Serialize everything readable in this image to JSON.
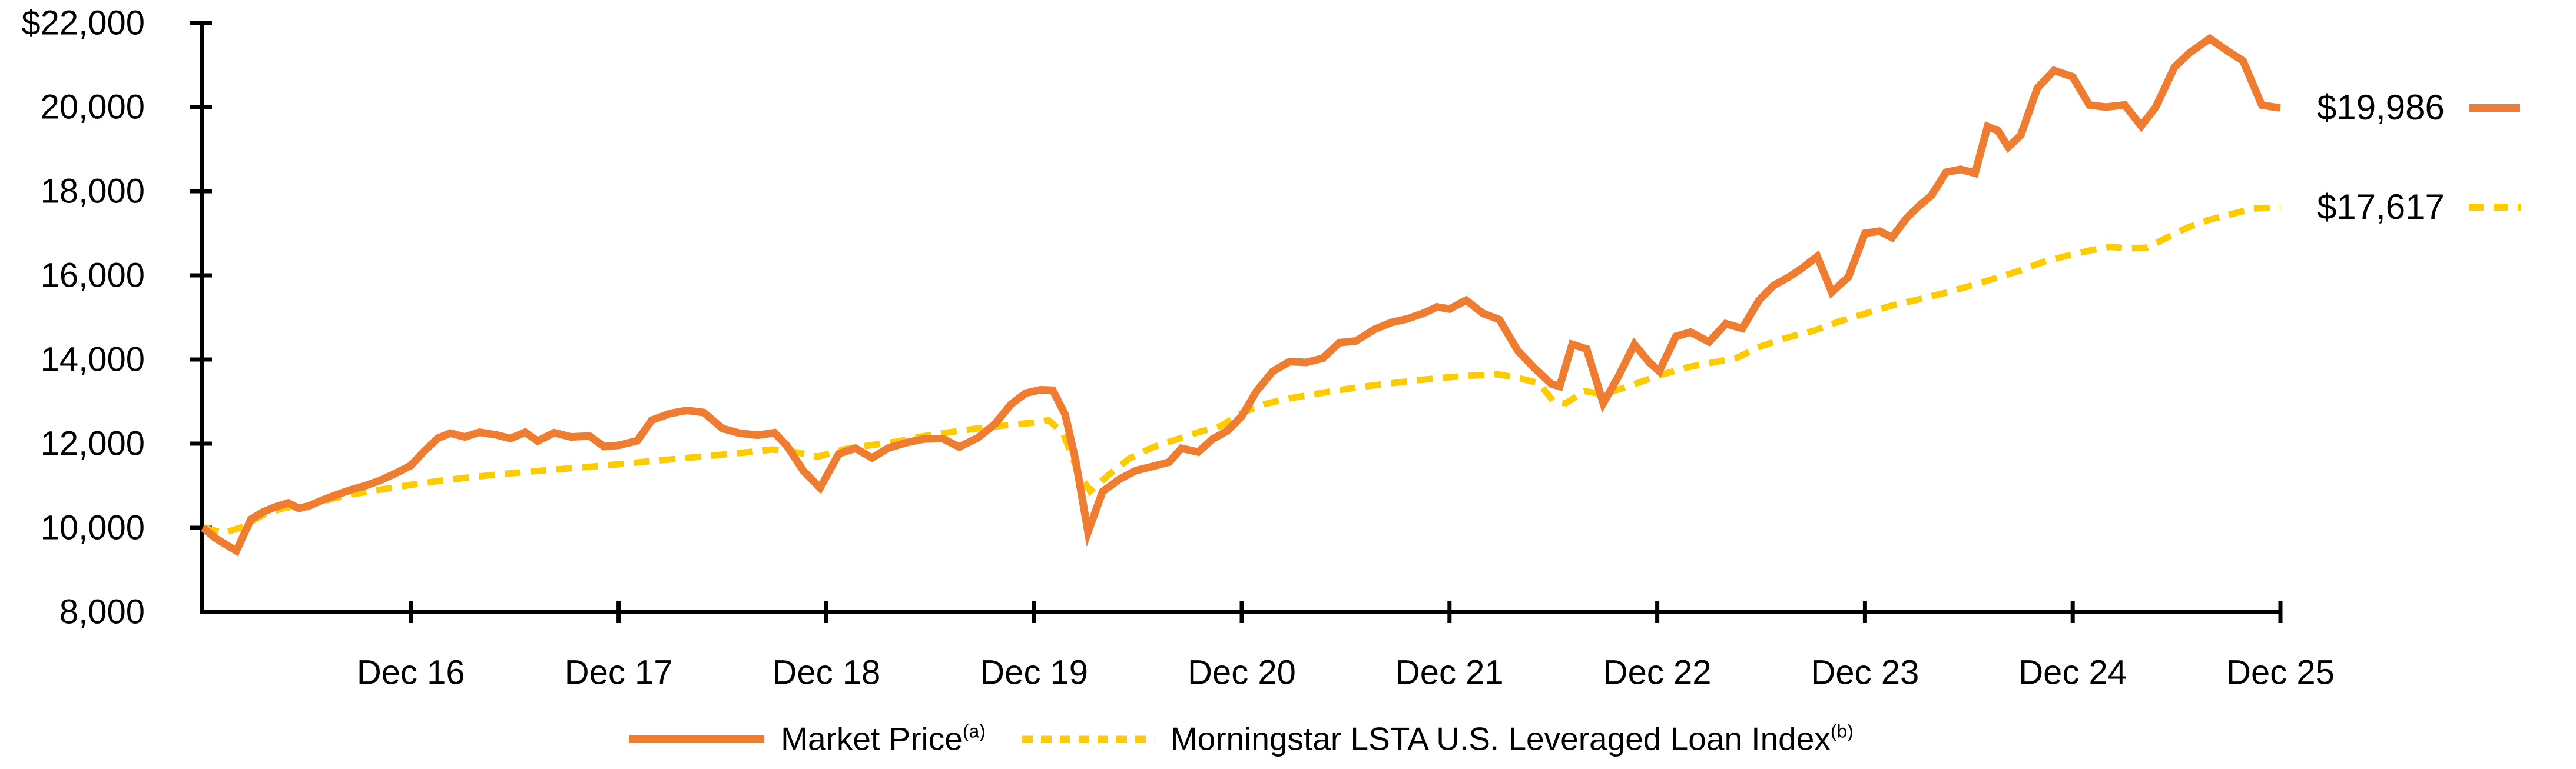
{
  "chart_data": {
    "type": "line",
    "title": "",
    "xlabel": "",
    "ylabel": "",
    "grid": "off",
    "legend_position": "bottom-center",
    "x_axis": {
      "range": [
        0,
        10
      ],
      "tick_positions": [
        1,
        2,
        3,
        4,
        5,
        6,
        7,
        8,
        9,
        10
      ],
      "tick_labels": [
        "Dec 16",
        "Dec 17",
        "Dec 18",
        "Dec 19",
        "Dec 20",
        "Dec 21",
        "Dec 22",
        "Dec 23",
        "Dec 24",
        "Dec 25"
      ]
    },
    "y_axis": {
      "range": [
        8000,
        22000
      ],
      "tick_values": [
        22000,
        20000,
        18000,
        16000,
        14000,
        12000,
        10000,
        8000
      ],
      "tick_labels": [
        "$22,000",
        "20,000",
        "18,000",
        "16,000",
        "14,000",
        "12,000",
        "10,000",
        "8,000"
      ]
    },
    "series": [
      {
        "name": "Market Price",
        "footnote": "(a)",
        "color": "#EE7D31",
        "line_style": "solid",
        "end_label": "$19,986",
        "end_value": 19986,
        "points": [
          [
            0,
            10000
          ],
          [
            0.06,
            9750
          ],
          [
            0.16,
            9450
          ],
          [
            0.23,
            10200
          ],
          [
            0.29,
            10380
          ],
          [
            0.35,
            10500
          ],
          [
            0.41,
            10590
          ],
          [
            0.46,
            10460
          ],
          [
            0.51,
            10520
          ],
          [
            0.57,
            10650
          ],
          [
            0.64,
            10780
          ],
          [
            0.71,
            10900
          ],
          [
            0.78,
            11000
          ],
          [
            0.85,
            11120
          ],
          [
            0.92,
            11280
          ],
          [
            1,
            11480
          ],
          [
            1.06,
            11800
          ],
          [
            1.13,
            12130
          ],
          [
            1.19,
            12250
          ],
          [
            1.26,
            12160
          ],
          [
            1.33,
            12270
          ],
          [
            1.41,
            12210
          ],
          [
            1.48,
            12120
          ],
          [
            1.55,
            12270
          ],
          [
            1.61,
            12060
          ],
          [
            1.69,
            12260
          ],
          [
            1.77,
            12160
          ],
          [
            1.86,
            12180
          ],
          [
            1.93,
            11930
          ],
          [
            2,
            11960
          ],
          [
            2.09,
            12070
          ],
          [
            2.16,
            12560
          ],
          [
            2.25,
            12720
          ],
          [
            2.33,
            12790
          ],
          [
            2.41,
            12740
          ],
          [
            2.5,
            12360
          ],
          [
            2.58,
            12250
          ],
          [
            2.67,
            12200
          ],
          [
            2.75,
            12260
          ],
          [
            2.81,
            11950
          ],
          [
            2.89,
            11350
          ],
          [
            2.97,
            10950
          ],
          [
            3.06,
            11760
          ],
          [
            3.14,
            11890
          ],
          [
            3.22,
            11660
          ],
          [
            3.3,
            11900
          ],
          [
            3.39,
            12030
          ],
          [
            3.47,
            12110
          ],
          [
            3.56,
            12120
          ],
          [
            3.64,
            11920
          ],
          [
            3.73,
            12140
          ],
          [
            3.81,
            12460
          ],
          [
            3.89,
            12940
          ],
          [
            3.96,
            13200
          ],
          [
            4.03,
            13280
          ],
          [
            4.09,
            13270
          ],
          [
            4.15,
            12690
          ],
          [
            4.2,
            11600
          ],
          [
            4.26,
            9900
          ],
          [
            4.33,
            10860
          ],
          [
            4.41,
            11150
          ],
          [
            4.49,
            11360
          ],
          [
            4.58,
            11470
          ],
          [
            4.65,
            11560
          ],
          [
            4.71,
            11890
          ],
          [
            4.79,
            11800
          ],
          [
            4.86,
            12110
          ],
          [
            4.93,
            12300
          ],
          [
            5,
            12650
          ],
          [
            5.07,
            13240
          ],
          [
            5.15,
            13720
          ],
          [
            5.23,
            13950
          ],
          [
            5.31,
            13930
          ],
          [
            5.39,
            14030
          ],
          [
            5.47,
            14400
          ],
          [
            5.55,
            14440
          ],
          [
            5.64,
            14720
          ],
          [
            5.72,
            14880
          ],
          [
            5.8,
            14970
          ],
          [
            5.88,
            15110
          ],
          [
            5.94,
            15250
          ],
          [
            6,
            15200
          ],
          [
            6.08,
            15410
          ],
          [
            6.16,
            15100
          ],
          [
            6.24,
            14950
          ],
          [
            6.33,
            14200
          ],
          [
            6.41,
            13790
          ],
          [
            6.49,
            13420
          ],
          [
            6.53,
            13360
          ],
          [
            6.59,
            14360
          ],
          [
            6.66,
            14250
          ],
          [
            6.74,
            12960
          ],
          [
            6.81,
            13570
          ],
          [
            6.89,
            14360
          ],
          [
            6.96,
            13940
          ],
          [
            7.01,
            13720
          ],
          [
            7.09,
            14550
          ],
          [
            7.16,
            14650
          ],
          [
            7.25,
            14420
          ],
          [
            7.33,
            14850
          ],
          [
            7.41,
            14740
          ],
          [
            7.49,
            15410
          ],
          [
            7.56,
            15760
          ],
          [
            7.63,
            15950
          ],
          [
            7.7,
            16180
          ],
          [
            7.77,
            16450
          ],
          [
            7.84,
            15600
          ],
          [
            7.92,
            15960
          ],
          [
            8,
            17000
          ],
          [
            8.07,
            17050
          ],
          [
            8.13,
            16900
          ],
          [
            8.2,
            17360
          ],
          [
            8.26,
            17650
          ],
          [
            8.32,
            17900
          ],
          [
            8.39,
            18450
          ],
          [
            8.46,
            18520
          ],
          [
            8.53,
            18430
          ],
          [
            8.59,
            19540
          ],
          [
            8.64,
            19440
          ],
          [
            8.69,
            19050
          ],
          [
            8.75,
            19330
          ],
          [
            8.83,
            20450
          ],
          [
            8.91,
            20870
          ],
          [
            9,
            20720
          ],
          [
            9.08,
            20050
          ],
          [
            9.16,
            20000
          ],
          [
            9.25,
            20050
          ],
          [
            9.33,
            19550
          ],
          [
            9.4,
            20000
          ],
          [
            9.49,
            20950
          ],
          [
            9.56,
            21280
          ],
          [
            9.66,
            21630
          ],
          [
            9.75,
            21320
          ],
          [
            9.82,
            21100
          ],
          [
            9.91,
            20050
          ],
          [
            9.97,
            20000
          ],
          [
            10,
            19986
          ]
        ]
      },
      {
        "name": "Morningstar LSTA U.S. Leveraged Loan Index",
        "footnote": "(b)",
        "color": "#FCCB00",
        "line_style": "dashed",
        "end_label": "$17,617",
        "end_value": 17617,
        "points": [
          [
            0,
            10000
          ],
          [
            0.1,
            9880
          ],
          [
            0.18,
            10000
          ],
          [
            0.29,
            10310
          ],
          [
            0.4,
            10490
          ],
          [
            0.47,
            10470
          ],
          [
            0.54,
            10570
          ],
          [
            0.63,
            10700
          ],
          [
            0.72,
            10800
          ],
          [
            0.82,
            10880
          ],
          [
            0.91,
            10950
          ],
          [
            1,
            11020
          ],
          [
            1.13,
            11110
          ],
          [
            1.27,
            11190
          ],
          [
            1.42,
            11270
          ],
          [
            1.56,
            11330
          ],
          [
            1.71,
            11390
          ],
          [
            1.86,
            11450
          ],
          [
            2,
            11510
          ],
          [
            2.15,
            11580
          ],
          [
            2.31,
            11650
          ],
          [
            2.46,
            11720
          ],
          [
            2.61,
            11790
          ],
          [
            2.74,
            11860
          ],
          [
            2.83,
            11820
          ],
          [
            2.96,
            11690
          ],
          [
            3.09,
            11870
          ],
          [
            3.21,
            11960
          ],
          [
            3.34,
            12050
          ],
          [
            3.46,
            12170
          ],
          [
            3.58,
            12260
          ],
          [
            3.71,
            12350
          ],
          [
            3.85,
            12430
          ],
          [
            4,
            12500
          ],
          [
            4.07,
            12560
          ],
          [
            4.14,
            12250
          ],
          [
            4.21,
            11350
          ],
          [
            4.27,
            10870
          ],
          [
            4.36,
            11260
          ],
          [
            4.46,
            11650
          ],
          [
            4.57,
            11910
          ],
          [
            4.68,
            12090
          ],
          [
            4.79,
            12270
          ],
          [
            4.9,
            12420
          ],
          [
            5,
            12730
          ],
          [
            5.11,
            12940
          ],
          [
            5.21,
            13060
          ],
          [
            5.33,
            13160
          ],
          [
            5.45,
            13260
          ],
          [
            5.58,
            13350
          ],
          [
            5.71,
            13430
          ],
          [
            5.85,
            13510
          ],
          [
            6,
            13580
          ],
          [
            6.12,
            13620
          ],
          [
            6.23,
            13650
          ],
          [
            6.34,
            13550
          ],
          [
            6.43,
            13440
          ],
          [
            6.5,
            13010
          ],
          [
            6.56,
            12960
          ],
          [
            6.65,
            13250
          ],
          [
            6.74,
            13170
          ],
          [
            6.86,
            13360
          ],
          [
            7,
            13610
          ],
          [
            7.15,
            13820
          ],
          [
            7.29,
            13950
          ],
          [
            7.39,
            14050
          ],
          [
            7.48,
            14280
          ],
          [
            7.61,
            14500
          ],
          [
            7.75,
            14680
          ],
          [
            7.88,
            14910
          ],
          [
            8,
            15090
          ],
          [
            8.12,
            15270
          ],
          [
            8.25,
            15420
          ],
          [
            8.39,
            15590
          ],
          [
            8.52,
            15770
          ],
          [
            8.64,
            15950
          ],
          [
            8.75,
            16120
          ],
          [
            8.87,
            16340
          ],
          [
            9,
            16500
          ],
          [
            9.09,
            16600
          ],
          [
            9.18,
            16680
          ],
          [
            9.27,
            16640
          ],
          [
            9.36,
            16660
          ],
          [
            9.45,
            16890
          ],
          [
            9.55,
            17130
          ],
          [
            9.65,
            17310
          ],
          [
            9.76,
            17450
          ],
          [
            9.87,
            17590
          ],
          [
            10,
            17617
          ]
        ]
      }
    ]
  }
}
